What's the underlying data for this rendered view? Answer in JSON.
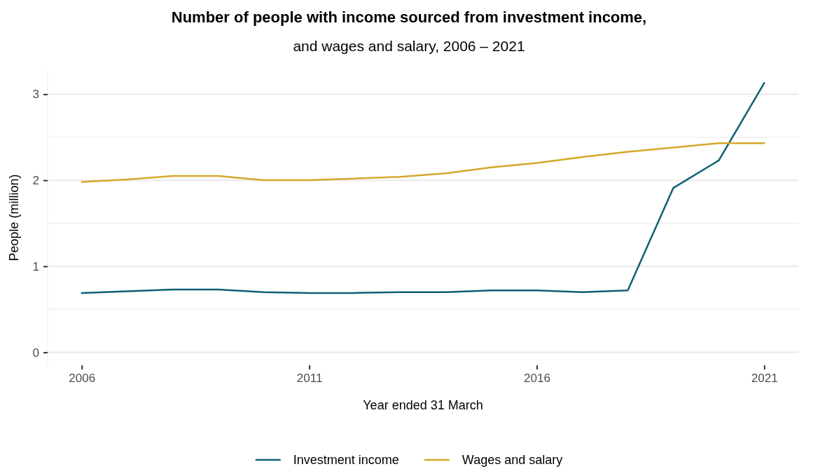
{
  "chart_data": {
    "type": "line",
    "title": "Number of people with income sourced from investment income,",
    "subtitle": "and wages and salary, 2006 – 2021",
    "xlabel": "Year ended 31 March",
    "ylabel": "People (million)",
    "x": [
      2006,
      2007,
      2008,
      2009,
      2010,
      2011,
      2012,
      2013,
      2014,
      2015,
      2016,
      2017,
      2018,
      2019,
      2020,
      2021
    ],
    "series": [
      {
        "name": "Investment income",
        "color": "#0e5f78",
        "values": [
          0.69,
          0.71,
          0.73,
          0.73,
          0.7,
          0.69,
          0.69,
          0.7,
          0.7,
          0.72,
          0.72,
          0.7,
          0.72,
          1.91,
          2.23,
          3.13
        ]
      },
      {
        "name": "Wages and salary",
        "color": "#d4a82a",
        "values": [
          1.98,
          2.01,
          2.05,
          2.05,
          2.0,
          2.0,
          2.02,
          2.04,
          2.08,
          2.15,
          2.2,
          2.27,
          2.33,
          2.38,
          2.43,
          2.43
        ]
      }
    ],
    "xlim": [
      2005.25,
      2021.75
    ],
    "xticks": [
      2006,
      2011,
      2016,
      2021
    ],
    "ylim": [
      -0.15,
      3.28
    ],
    "yticks": [
      0,
      {
        "value": 0.5,
        "label": null
      },
      1,
      {
        "value": 1.5,
        "label": null
      },
      2,
      {
        "value": 2.5,
        "label": null
      },
      3
    ],
    "grid": "y",
    "legend": "bottom",
    "line_style": "solid",
    "marker": "none"
  }
}
